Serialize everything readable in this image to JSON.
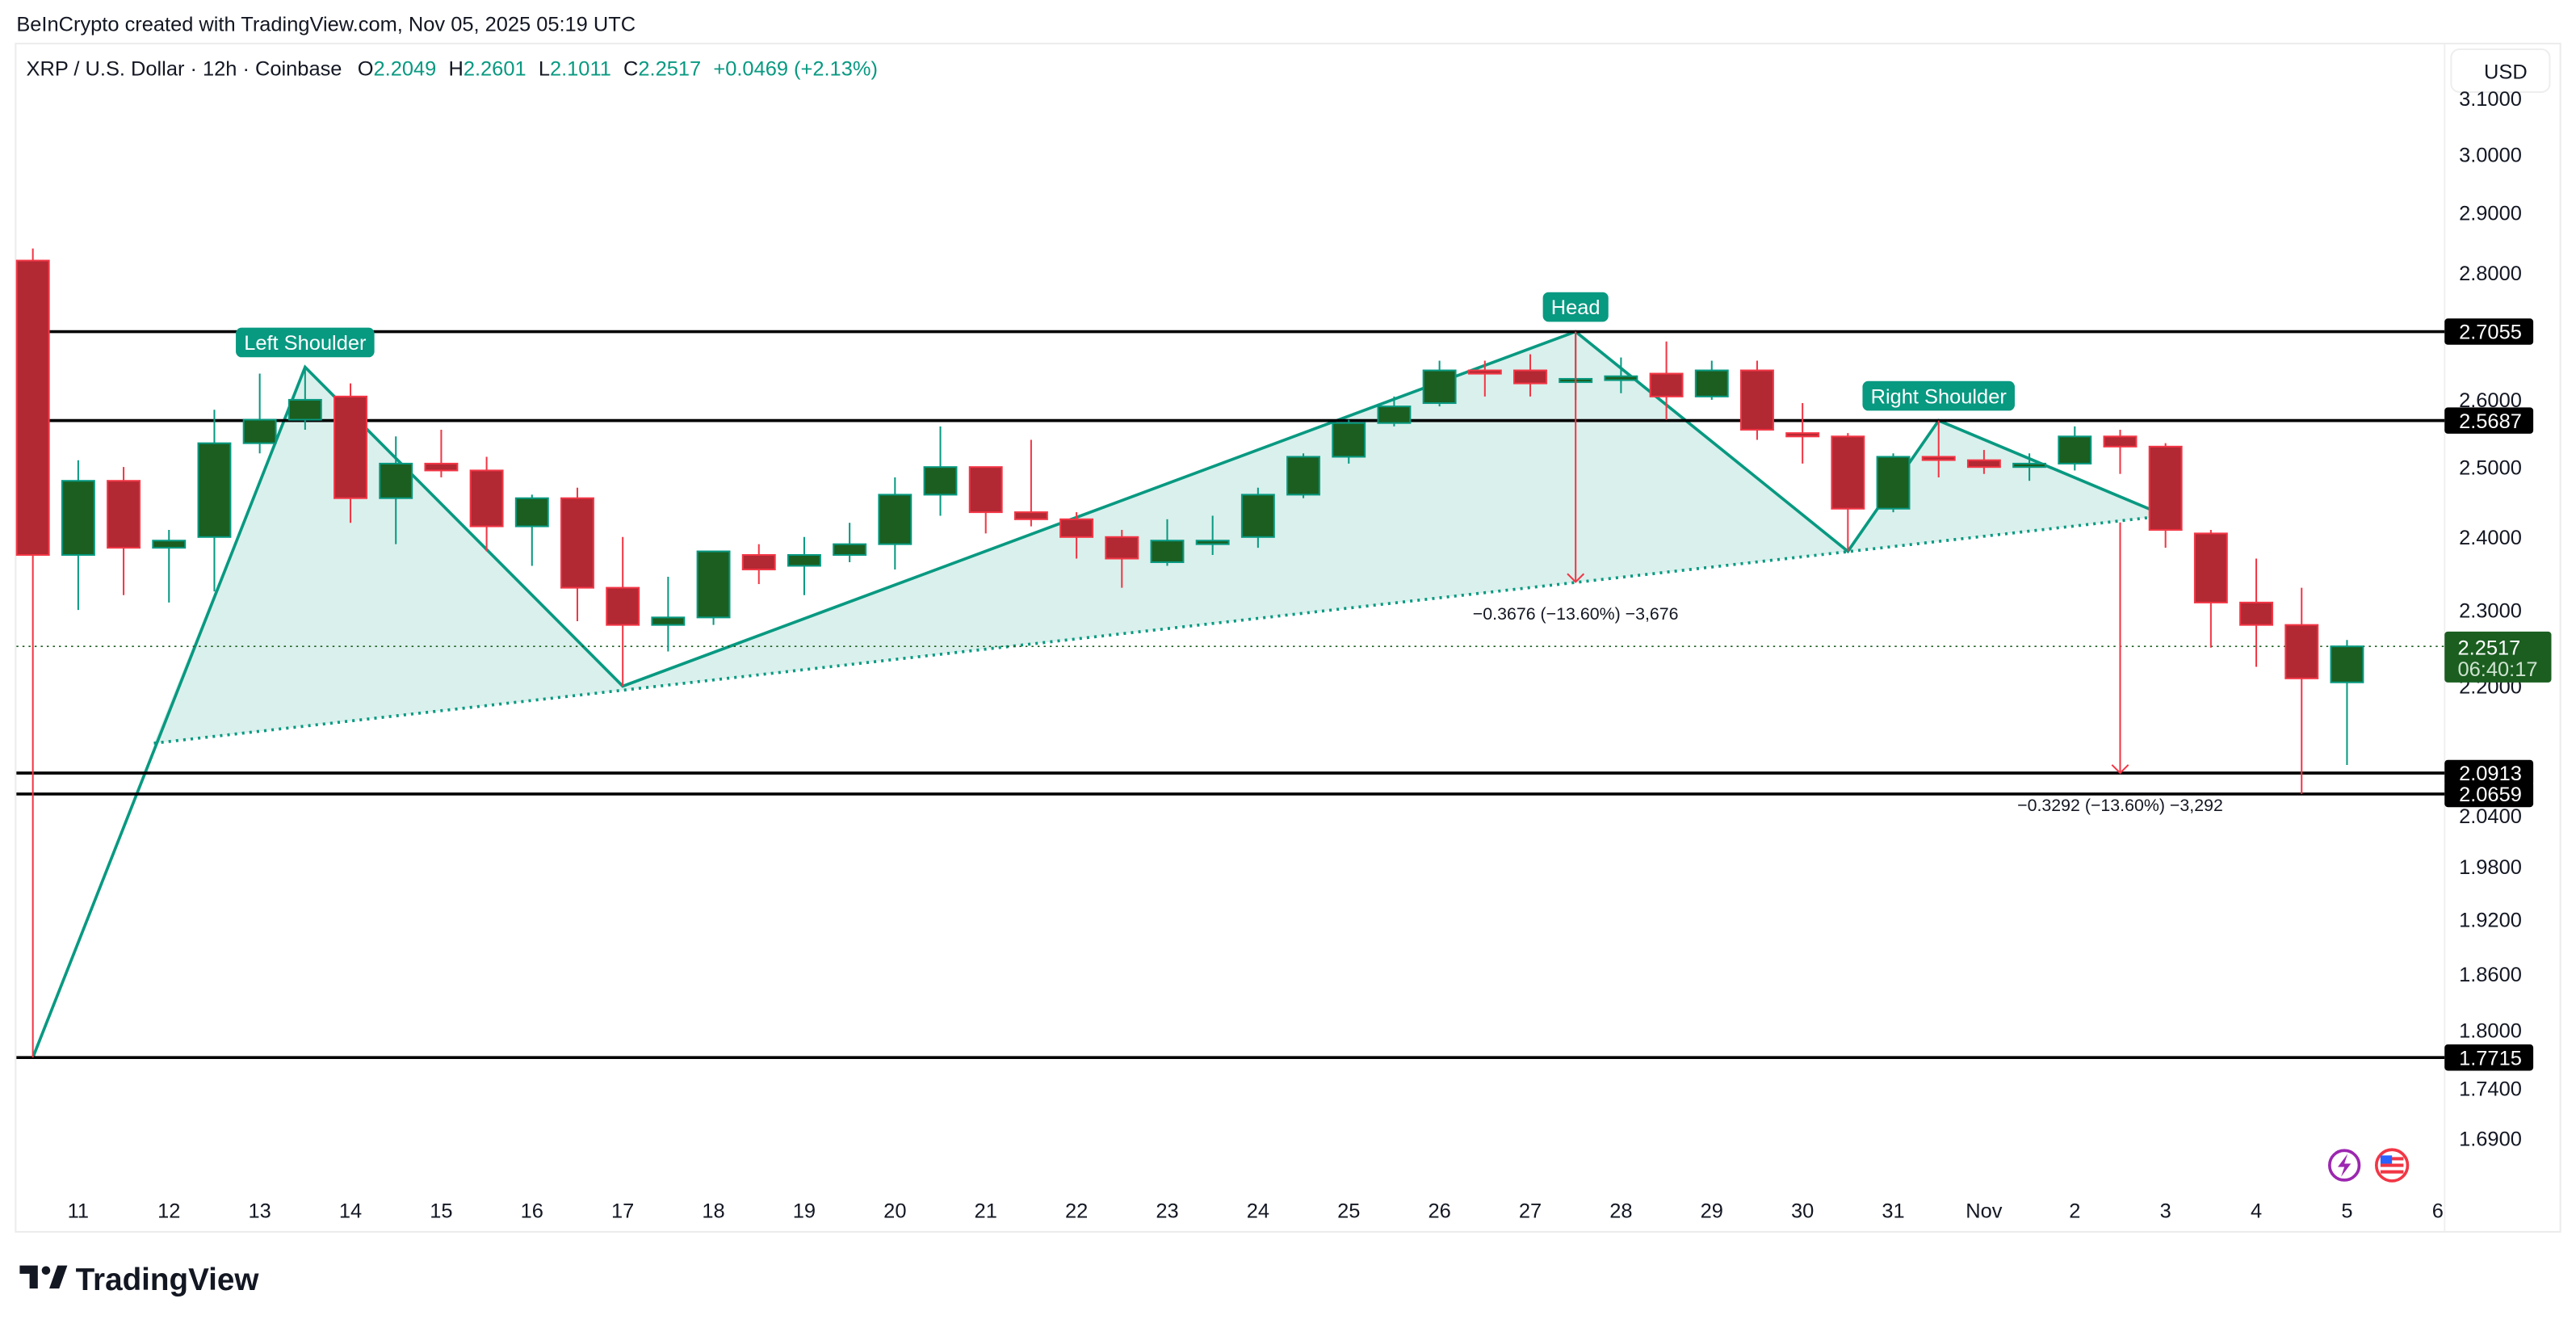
{
  "header": {
    "attribution": "BeInCrypto created with TradingView.com, Nov 05, 2025 05:19 UTC"
  },
  "legend": {
    "symbol": "XRP / U.S. Dollar · 12h · Coinbase",
    "o_label": "O",
    "o_value": "2.2049",
    "h_label": "H",
    "h_value": "2.2601",
    "l_label": "L",
    "l_value": "2.1011",
    "c_label": "C",
    "c_value": "2.2517",
    "change": "+0.0469 (+2.13%)"
  },
  "currency_button": "USD",
  "footer": {
    "logo_text": "TradingView"
  },
  "colors": {
    "up_body": "#1b5e20",
    "up_border": "#089981",
    "down_body": "#b22833",
    "down_border": "#f23645",
    "pattern": "#089981",
    "level_line": "#000000",
    "price_label_bg": "#1b5e20"
  },
  "icons": [
    "lightning-icon",
    "us-flag-icon"
  ],
  "chart_data": {
    "type": "candlestick",
    "scale": "log",
    "ylim": [
      1.665,
      3.12
    ],
    "grid": false,
    "y_ticks": [
      "3.1000",
      "3.0000",
      "2.9000",
      "2.8000",
      "2.6000",
      "2.5000",
      "2.4000",
      "2.3000",
      "2.2000",
      "2.0400",
      "1.9800",
      "1.9200",
      "1.8600",
      "1.8000",
      "1.7400",
      "1.6900"
    ],
    "x_ticks": [
      {
        "label": "11",
        "t": "2025-10-11T00:00"
      },
      {
        "label": "12",
        "t": "2025-10-12T00:00"
      },
      {
        "label": "13",
        "t": "2025-10-13T00:00"
      },
      {
        "label": "14",
        "t": "2025-10-14T00:00"
      },
      {
        "label": "15",
        "t": "2025-10-15T00:00"
      },
      {
        "label": "16",
        "t": "2025-10-16T00:00"
      },
      {
        "label": "17",
        "t": "2025-10-17T00:00"
      },
      {
        "label": "18",
        "t": "2025-10-18T00:00"
      },
      {
        "label": "19",
        "t": "2025-10-19T00:00"
      },
      {
        "label": "20",
        "t": "2025-10-20T00:00"
      },
      {
        "label": "21",
        "t": "2025-10-21T00:00"
      },
      {
        "label": "22",
        "t": "2025-10-22T00:00"
      },
      {
        "label": "23",
        "t": "2025-10-23T00:00"
      },
      {
        "label": "24",
        "t": "2025-10-24T00:00"
      },
      {
        "label": "25",
        "t": "2025-10-25T00:00"
      },
      {
        "label": "26",
        "t": "2025-10-26T00:00"
      },
      {
        "label": "27",
        "t": "2025-10-27T00:00"
      },
      {
        "label": "28",
        "t": "2025-10-28T00:00"
      },
      {
        "label": "29",
        "t": "2025-10-29T00:00"
      },
      {
        "label": "30",
        "t": "2025-10-30T00:00"
      },
      {
        "label": "31",
        "t": "2025-10-31T00:00"
      },
      {
        "label": "Nov",
        "t": "2025-11-01T00:00"
      },
      {
        "label": "2",
        "t": "2025-11-02T00:00"
      },
      {
        "label": "3",
        "t": "2025-11-03T00:00"
      },
      {
        "label": "4",
        "t": "2025-11-04T00:00"
      },
      {
        "label": "5",
        "t": "2025-11-05T00:00"
      },
      {
        "label": "6",
        "t": "2025-11-06T00:00"
      }
    ],
    "candles": [
      {
        "t": "2025-10-10T12:00",
        "o": 2.82,
        "h": 2.84,
        "l": 1.7715,
        "c": 2.375
      },
      {
        "t": "2025-10-11T00:00",
        "o": 2.375,
        "h": 2.51,
        "l": 2.3,
        "c": 2.48
      },
      {
        "t": "2025-10-11T12:00",
        "o": 2.48,
        "h": 2.5,
        "l": 2.32,
        "c": 2.385
      },
      {
        "t": "2025-10-12T00:00",
        "o": 2.385,
        "h": 2.41,
        "l": 2.31,
        "c": 2.395
      },
      {
        "t": "2025-10-12T12:00",
        "o": 2.4,
        "h": 2.585,
        "l": 2.325,
        "c": 2.535
      },
      {
        "t": "2025-10-13T00:00",
        "o": 2.535,
        "h": 2.64,
        "l": 2.52,
        "c": 2.57
      },
      {
        "t": "2025-10-13T12:00",
        "o": 2.57,
        "h": 2.65,
        "l": 2.555,
        "c": 2.6
      },
      {
        "t": "2025-10-14T00:00",
        "o": 2.605,
        "h": 2.625,
        "l": 2.42,
        "c": 2.455
      },
      {
        "t": "2025-10-14T12:00",
        "o": 2.455,
        "h": 2.545,
        "l": 2.39,
        "c": 2.505
      },
      {
        "t": "2025-10-15T00:00",
        "o": 2.505,
        "h": 2.555,
        "l": 2.485,
        "c": 2.495
      },
      {
        "t": "2025-10-15T12:00",
        "o": 2.495,
        "h": 2.515,
        "l": 2.38,
        "c": 2.415
      },
      {
        "t": "2025-10-16T00:00",
        "o": 2.415,
        "h": 2.46,
        "l": 2.36,
        "c": 2.455
      },
      {
        "t": "2025-10-16T12:00",
        "o": 2.455,
        "h": 2.47,
        "l": 2.285,
        "c": 2.33
      },
      {
        "t": "2025-10-17T00:00",
        "o": 2.33,
        "h": 2.4,
        "l": 2.2,
        "c": 2.28
      },
      {
        "t": "2025-10-17T12:00",
        "o": 2.28,
        "h": 2.345,
        "l": 2.245,
        "c": 2.29
      },
      {
        "t": "2025-10-18T00:00",
        "o": 2.29,
        "h": 2.38,
        "l": 2.28,
        "c": 2.38
      },
      {
        "t": "2025-10-18T12:00",
        "o": 2.375,
        "h": 2.39,
        "l": 2.335,
        "c": 2.355
      },
      {
        "t": "2025-10-19T00:00",
        "o": 2.36,
        "h": 2.4,
        "l": 2.32,
        "c": 2.375
      },
      {
        "t": "2025-10-19T12:00",
        "o": 2.375,
        "h": 2.42,
        "l": 2.365,
        "c": 2.39
      },
      {
        "t": "2025-10-20T00:00",
        "o": 2.39,
        "h": 2.485,
        "l": 2.355,
        "c": 2.46
      },
      {
        "t": "2025-10-20T12:00",
        "o": 2.46,
        "h": 2.56,
        "l": 2.43,
        "c": 2.5
      },
      {
        "t": "2025-10-21T00:00",
        "o": 2.5,
        "h": 2.5,
        "l": 2.405,
        "c": 2.435
      },
      {
        "t": "2025-10-21T12:00",
        "o": 2.435,
        "h": 2.54,
        "l": 2.415,
        "c": 2.425
      },
      {
        "t": "2025-10-22T00:00",
        "o": 2.425,
        "h": 2.435,
        "l": 2.37,
        "c": 2.4
      },
      {
        "t": "2025-10-22T12:00",
        "o": 2.4,
        "h": 2.41,
        "l": 2.33,
        "c": 2.37
      },
      {
        "t": "2025-10-23T00:00",
        "o": 2.365,
        "h": 2.425,
        "l": 2.36,
        "c": 2.395
      },
      {
        "t": "2025-10-23T12:00",
        "o": 2.39,
        "h": 2.43,
        "l": 2.375,
        "c": 2.395
      },
      {
        "t": "2025-10-24T00:00",
        "o": 2.4,
        "h": 2.47,
        "l": 2.385,
        "c": 2.46
      },
      {
        "t": "2025-10-24T12:00",
        "o": 2.46,
        "h": 2.52,
        "l": 2.455,
        "c": 2.515
      },
      {
        "t": "2025-10-25T00:00",
        "o": 2.515,
        "h": 2.57,
        "l": 2.505,
        "c": 2.565
      },
      {
        "t": "2025-10-25T12:00",
        "o": 2.565,
        "h": 2.605,
        "l": 2.56,
        "c": 2.59
      },
      {
        "t": "2025-10-26T00:00",
        "o": 2.595,
        "h": 2.66,
        "l": 2.59,
        "c": 2.645
      },
      {
        "t": "2025-10-26T12:00",
        "o": 2.645,
        "h": 2.66,
        "l": 2.605,
        "c": 2.641
      },
      {
        "t": "2025-10-27T00:00",
        "o": 2.645,
        "h": 2.67,
        "l": 2.605,
        "c": 2.625
      },
      {
        "t": "2025-10-27T12:00",
        "o": 2.628,
        "h": 2.7055,
        "l": 2.6,
        "c": 2.632
      },
      {
        "t": "2025-10-28T00:00",
        "o": 2.63,
        "h": 2.665,
        "l": 2.61,
        "c": 2.636
      },
      {
        "t": "2025-10-28T12:00",
        "o": 2.64,
        "h": 2.69,
        "l": 2.57,
        "c": 2.605
      },
      {
        "t": "2025-10-29T00:00",
        "o": 2.605,
        "h": 2.66,
        "l": 2.6,
        "c": 2.645
      },
      {
        "t": "2025-10-29T12:00",
        "o": 2.645,
        "h": 2.66,
        "l": 2.54,
        "c": 2.555
      },
      {
        "t": "2025-10-30T00:00",
        "o": 2.55,
        "h": 2.595,
        "l": 2.505,
        "c": 2.545
      },
      {
        "t": "2025-10-30T12:00",
        "o": 2.545,
        "h": 2.55,
        "l": 2.38,
        "c": 2.44
      },
      {
        "t": "2025-10-31T00:00",
        "o": 2.44,
        "h": 2.52,
        "l": 2.435,
        "c": 2.515
      },
      {
        "t": "2025-10-31T12:00",
        "o": 2.515,
        "h": 2.5687,
        "l": 2.485,
        "c": 2.512
      },
      {
        "t": "2025-11-01T00:00",
        "o": 2.51,
        "h": 2.525,
        "l": 2.49,
        "c": 2.5
      },
      {
        "t": "2025-11-01T12:00",
        "o": 2.5,
        "h": 2.52,
        "l": 2.48,
        "c": 2.505
      },
      {
        "t": "2025-11-02T00:00",
        "o": 2.505,
        "h": 2.56,
        "l": 2.495,
        "c": 2.545
      },
      {
        "t": "2025-11-02T12:00",
        "o": 2.545,
        "h": 2.555,
        "l": 2.49,
        "c": 2.53
      },
      {
        "t": "2025-11-03T00:00",
        "o": 2.53,
        "h": 2.535,
        "l": 2.385,
        "c": 2.41
      },
      {
        "t": "2025-11-03T12:00",
        "o": 2.405,
        "h": 2.41,
        "l": 2.25,
        "c": 2.31
      },
      {
        "t": "2025-11-04T00:00",
        "o": 2.31,
        "h": 2.37,
        "l": 2.225,
        "c": 2.28
      },
      {
        "t": "2025-11-04T12:00",
        "o": 2.28,
        "h": 2.33,
        "l": 2.0659,
        "c": 2.21
      },
      {
        "t": "2025-11-05T00:00",
        "o": 2.2049,
        "h": 2.2601,
        "l": 2.1011,
        "c": 2.2517
      }
    ],
    "levels": [
      {
        "price": 2.7055,
        "label": "2.7055"
      },
      {
        "price": 2.5687,
        "label": "2.5687"
      },
      {
        "price": 2.0913,
        "label": "2.0913"
      },
      {
        "price": 2.0659,
        "label": "2.0659"
      },
      {
        "price": 1.7715,
        "label": "1.7715"
      }
    ],
    "current_price": {
      "price": 2.2517,
      "label": "2.2517",
      "countdown": "06:40:17"
    },
    "pattern": {
      "points": [
        {
          "t": "2025-10-10T12:00",
          "price": 1.7715
        },
        {
          "t": "2025-10-13T12:00",
          "price": 2.65
        },
        {
          "t": "2025-10-17T00:00",
          "price": 2.2
        },
        {
          "t": "2025-10-27T12:00",
          "price": 2.7055
        },
        {
          "t": "2025-10-30T12:00",
          "price": 2.38
        },
        {
          "t": "2025-10-31T12:00",
          "price": 2.5687
        },
        {
          "t": "2025-11-03T00:00",
          "price": 2.43
        }
      ],
      "neckline": [
        {
          "t": "2025-10-11T20:00",
          "price": 2.128
        },
        {
          "t": "2025-11-03T00:00",
          "price": 2.43
        }
      ],
      "labels": [
        {
          "text": "Left Shoulder",
          "t": "2025-10-13T12:00",
          "price": 2.65
        },
        {
          "text": "Head",
          "t": "2025-10-27T12:00",
          "price": 2.7055
        },
        {
          "text": "Right Shoulder",
          "t": "2025-10-31T12:00",
          "price": 2.5687
        }
      ]
    },
    "measurements": [
      {
        "t": "2025-10-27T12:00",
        "from": 2.7055,
        "to": 2.3379,
        "text": "−0.3676 (−13.60%) −3,676"
      },
      {
        "t": "2025-11-02T12:00",
        "from": 2.4205,
        "to": 2.0913,
        "text": "−0.3292 (−13.60%) −3,292"
      }
    ]
  }
}
